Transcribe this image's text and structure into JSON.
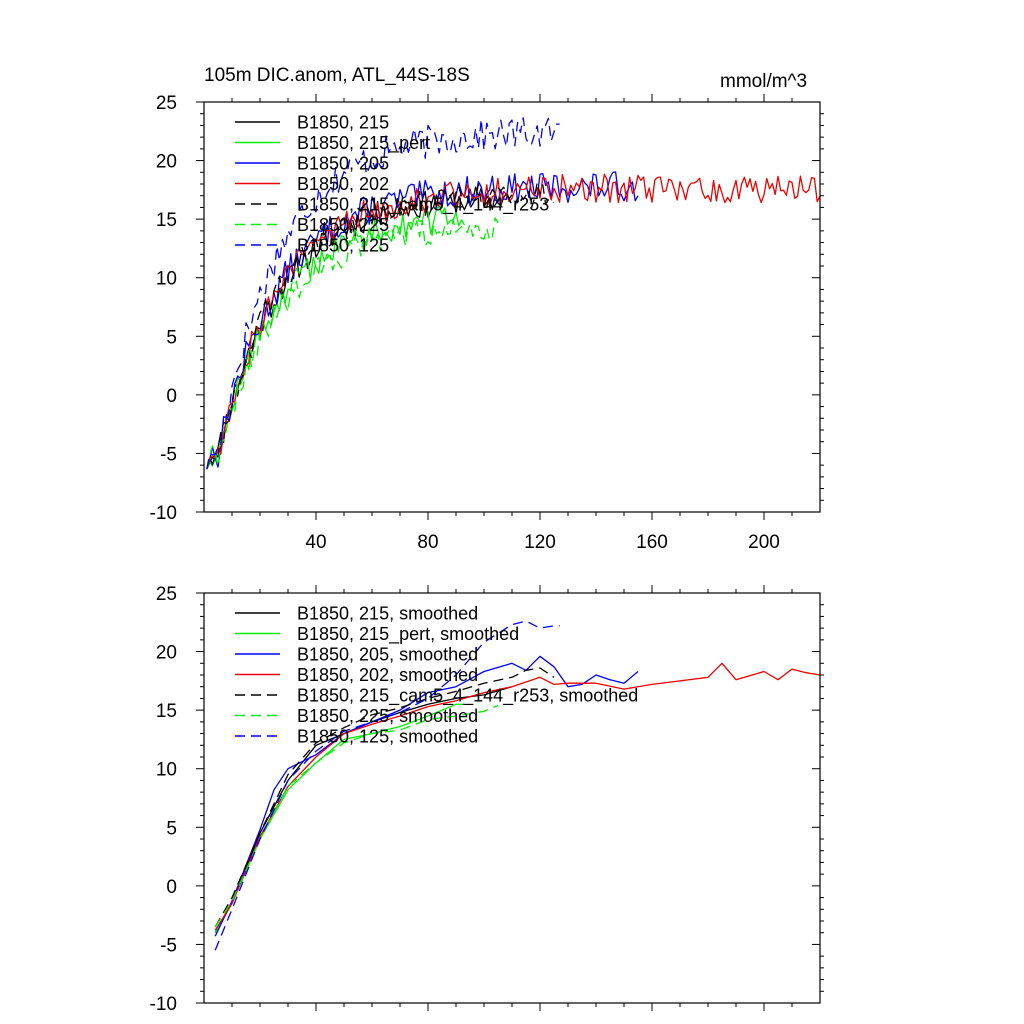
{
  "title_left": "105m DIC.anom, ATL_44S-18S",
  "title_right": "mmol/m^3",
  "colors": {
    "black": "#000000",
    "green": "#00ee00",
    "blue": "#0000ff",
    "red": "#ee0000"
  },
  "chart_data": [
    {
      "type": "line",
      "panel": "top",
      "title": "105m DIC.anom, ATL_44S-18S",
      "units": "mmol/m^3",
      "xlim": [
        0,
        220
      ],
      "ylim": [
        -10,
        25
      ],
      "xticks": [
        40,
        80,
        120,
        160,
        200
      ],
      "xtick_labels": [
        "40",
        "80",
        "120",
        "160",
        "200"
      ],
      "yticks": [
        -10,
        -5,
        0,
        5,
        10,
        15,
        20,
        25
      ],
      "ytick_labels": [
        "-10",
        "-5",
        "0",
        "5",
        "10",
        "15",
        "20",
        "25"
      ],
      "legend_position": "top-left",
      "series": [
        {
          "name": "B1850, 215",
          "color": "#000000",
          "dash": false,
          "length": 110,
          "plateau": 17.0,
          "noise": 0.9,
          "seed": 11
        },
        {
          "name": "B1850, 215_pert",
          "color": "#00ee00",
          "dash": false,
          "length": 93,
          "plateau": 15.5,
          "noise": 0.9,
          "seed": 12
        },
        {
          "name": "B1850, 205",
          "color": "#0000ff",
          "dash": false,
          "length": 155,
          "plateau": 17.8,
          "noise": 1.0,
          "seed": 13
        },
        {
          "name": "B1850, 202",
          "color": "#ee0000",
          "dash": false,
          "length": 220,
          "plateau": 17.6,
          "noise": 1.0,
          "seed": 14
        },
        {
          "name": "B1850, 215_cam5_4_144_r253",
          "color": "#000000",
          "dash": true,
          "length": 125,
          "plateau": 17.2,
          "noise": 0.9,
          "seed": 15
        },
        {
          "name": "B1850, 225",
          "color": "#00ee00",
          "dash": true,
          "length": 105,
          "plateau": 14.5,
          "noise": 0.9,
          "seed": 16
        },
        {
          "name": "B1850, 125",
          "color": "#0000ff",
          "dash": true,
          "length": 127,
          "plateau": 22.5,
          "noise": 1.1,
          "seed": 17
        }
      ]
    },
    {
      "type": "line",
      "panel": "bottom",
      "xlim": [
        0,
        220
      ],
      "ylim": [
        -10,
        25
      ],
      "xticks": [
        40,
        80,
        120,
        160,
        200
      ],
      "yticks": [
        -10,
        -5,
        0,
        5,
        10,
        15,
        20,
        25
      ],
      "ytick_labels": [
        "-10",
        "-5",
        "0",
        "5",
        "10",
        "15",
        "20",
        "25"
      ],
      "legend_position": "top-left",
      "series": [
        {
          "name": "B1850, 215, smoothed",
          "color": "#000000",
          "dash": false,
          "x": [
            4,
            10,
            20,
            30,
            40,
            50,
            60,
            70,
            80,
            90,
            100,
            110
          ],
          "y": [
            -4,
            -1.5,
            4.5,
            9,
            12,
            13,
            14,
            14.8,
            15.5,
            16,
            16.3,
            17
          ]
        },
        {
          "name": "B1850, 215_pert, smoothed",
          "color": "#00ee00",
          "dash": false,
          "x": [
            4,
            10,
            20,
            30,
            40,
            50,
            60,
            70,
            80,
            90,
            93
          ],
          "y": [
            -4,
            -1.5,
            4,
            8.2,
            10.5,
            12.5,
            13,
            13.6,
            14.5,
            15.5,
            15.5
          ]
        },
        {
          "name": "B1850, 205, smoothed",
          "color": "#0000ff",
          "dash": false,
          "x": [
            4,
            10,
            20,
            25,
            30,
            40,
            50,
            60,
            70,
            80,
            90,
            100,
            110,
            115,
            120,
            125,
            130,
            135,
            140,
            145,
            150,
            155
          ],
          "y": [
            -4.3,
            -1.3,
            4.8,
            8.2,
            10,
            11.2,
            13,
            14,
            15,
            16.5,
            17,
            18.3,
            19,
            18.4,
            19.6,
            18.7,
            17,
            17.2,
            18,
            17.6,
            17.3,
            18.3
          ]
        },
        {
          "name": "B1850, 202, smoothed",
          "color": "#ee0000",
          "dash": false,
          "x": [
            4,
            10,
            20,
            30,
            40,
            50,
            60,
            70,
            80,
            90,
            100,
            110,
            120,
            125,
            130,
            140,
            150,
            160,
            170,
            180,
            185,
            190,
            200,
            205,
            210,
            215,
            220
          ],
          "y": [
            -3.8,
            -1.5,
            4.2,
            8.5,
            11,
            13,
            13.8,
            14.5,
            15.3,
            15.8,
            16.5,
            17,
            17.8,
            17.2,
            17.3,
            17.3,
            16.8,
            17.2,
            17.5,
            17.8,
            19,
            17.6,
            18.3,
            17.6,
            18.5,
            18.2,
            18
          ]
        },
        {
          "name": "B1850, 215_cam5_4_144_r253, smoothed",
          "color": "#000000",
          "dash": true,
          "x": [
            4,
            10,
            20,
            30,
            40,
            50,
            60,
            70,
            80,
            90,
            100,
            110,
            115,
            120,
            125
          ],
          "y": [
            -3.5,
            -1,
            4.5,
            9.5,
            12.2,
            13.5,
            14.6,
            15.2,
            16,
            16.6,
            17.3,
            17.8,
            18.4,
            18.6,
            17.8
          ]
        },
        {
          "name": "B1850, 225, smoothed",
          "color": "#00ee00",
          "dash": true,
          "x": [
            4,
            10,
            20,
            30,
            40,
            50,
            60,
            70,
            80,
            90,
            100,
            105
          ],
          "y": [
            -3.5,
            -1.3,
            4,
            8.5,
            10.5,
            12.2,
            13,
            13.3,
            14.2,
            14.5,
            14.9,
            15.4
          ]
        },
        {
          "name": "B1850, 125, smoothed",
          "color": "#0000ff",
          "dash": true,
          "x": [
            4,
            10,
            20,
            30,
            40,
            50,
            60,
            70,
            80,
            90,
            100,
            110,
            115,
            120,
            125,
            127
          ],
          "y": [
            -5.5,
            -2,
            4,
            9,
            11.5,
            13.2,
            14,
            14.8,
            16,
            18,
            20.8,
            22.3,
            22.6,
            22,
            22.2,
            22.2
          ]
        }
      ]
    }
  ]
}
